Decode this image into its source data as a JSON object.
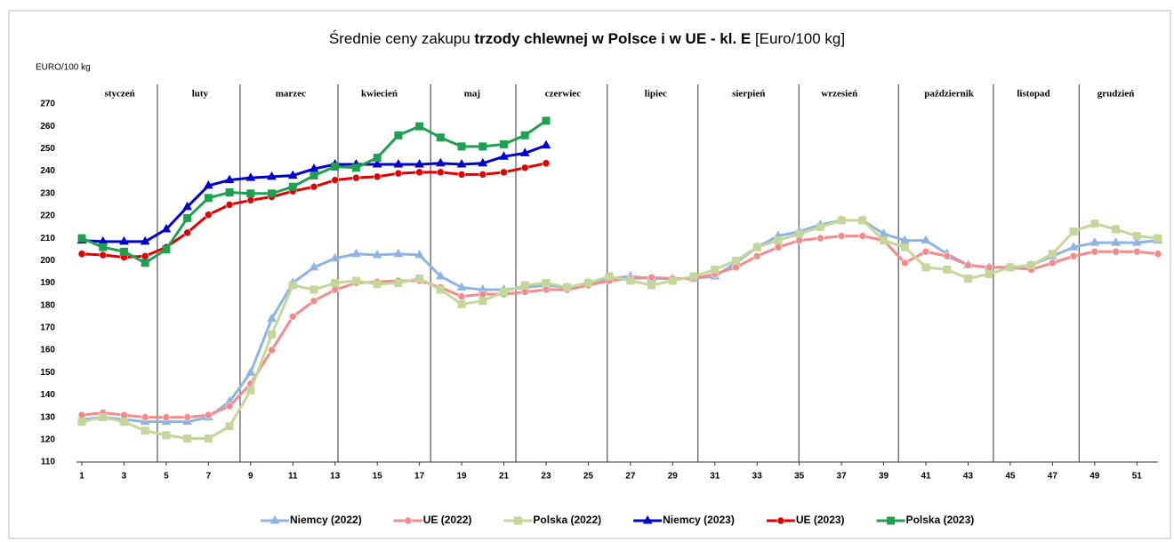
{
  "chart_data": {
    "type": "line",
    "title": [
      "Średnie ceny zakupu ",
      "trzody chlewnej w Polsce i w UE - kl. E",
      " [Euro/100 kg]"
    ],
    "y_label": "EURO/100 kg",
    "months": [
      "styczeń",
      "luty",
      "marzec",
      "kwiecień",
      "maj",
      "czerwiec",
      "lipiec",
      "sierpień",
      "wrzesień",
      "październik",
      "listopad",
      "grudzień"
    ],
    "x": [
      1,
      2,
      3,
      4,
      5,
      6,
      7,
      8,
      9,
      10,
      11,
      12,
      13,
      14,
      15,
      16,
      17,
      18,
      19,
      20,
      21,
      22,
      23,
      24,
      25,
      26,
      27,
      28,
      29,
      30,
      31,
      32,
      33,
      34,
      35,
      36,
      37,
      38,
      39,
      40,
      41,
      42,
      43,
      44,
      45,
      46,
      47,
      48,
      49,
      50,
      51,
      52
    ],
    "xlim": [
      1,
      52
    ],
    "xticks": [
      1,
      3,
      5,
      7,
      9,
      11,
      13,
      15,
      17,
      19,
      21,
      23,
      25,
      27,
      29,
      31,
      33,
      35,
      37,
      39,
      41,
      43,
      45,
      47,
      49,
      51
    ],
    "ylim": [
      110,
      270
    ],
    "yticks": [
      110,
      120,
      130,
      140,
      150,
      160,
      170,
      180,
      190,
      200,
      210,
      220,
      230,
      240,
      250,
      260,
      270
    ],
    "grid": false,
    "legend": "bottom",
    "series": [
      {
        "name": "Niemcy (2022)",
        "color": "#8eb4e3",
        "marker": "triangle",
        "values": [
          129,
          130,
          129,
          128,
          128,
          128,
          130,
          137,
          150,
          174,
          190,
          197,
          201,
          203,
          202.5,
          203,
          202.5,
          193,
          188,
          187,
          187,
          188,
          189,
          188,
          190,
          192,
          193,
          192,
          192,
          192,
          193,
          199,
          206,
          211,
          213,
          216,
          218,
          218,
          212,
          209,
          209,
          203,
          198,
          197,
          197,
          198,
          202,
          206,
          208,
          208,
          208,
          209
        ]
      },
      {
        "name": "UE (2022)",
        "color": "#f48a8a",
        "marker": "circle",
        "values": [
          131,
          132,
          131,
          130,
          130,
          130,
          131,
          135,
          145,
          160,
          175,
          182,
          187,
          190,
          190.5,
          191,
          191,
          188,
          184,
          185,
          185,
          186,
          187,
          187,
          189,
          191,
          192,
          192.5,
          192,
          192,
          194,
          197,
          202,
          206,
          209,
          210,
          211,
          211,
          209,
          199,
          204,
          202,
          198,
          197,
          197,
          196,
          199,
          202,
          204,
          204,
          204,
          203
        ]
      },
      {
        "name": "Polska (2022)",
        "color": "#c4d79b",
        "marker": "square",
        "values": [
          128,
          130,
          128,
          124,
          122,
          120.5,
          120.5,
          126,
          142,
          167,
          189,
          187,
          190,
          191,
          189.5,
          190,
          192,
          187,
          180.5,
          182,
          186,
          189,
          190,
          188,
          190,
          193,
          191,
          189,
          191,
          193,
          196,
          200,
          206,
          209,
          212,
          215,
          218,
          218,
          209,
          206,
          197,
          196,
          192,
          194,
          197,
          198,
          203,
          213,
          216.5,
          214,
          211,
          210
        ]
      },
      {
        "name": "Niemcy (2023)",
        "color": "#0000cc",
        "marker": "triangle",
        "values": [
          209,
          208.5,
          208.5,
          208.5,
          214,
          224,
          233.5,
          236,
          237,
          237.5,
          238,
          241,
          243,
          243,
          243,
          243,
          243,
          243.5,
          243,
          243.5,
          246.5,
          248,
          251.5,
          null,
          null,
          null,
          null,
          null,
          null,
          null,
          null,
          null,
          null,
          null,
          null,
          null,
          null,
          null,
          null,
          null,
          null,
          null,
          null,
          null,
          null,
          null,
          null,
          null,
          null,
          null,
          null,
          null
        ]
      },
      {
        "name": "UE (2023)",
        "color": "#e00000",
        "marker": "circle",
        "values": [
          203,
          202.5,
          201.5,
          202,
          206,
          212.5,
          220.5,
          225,
          227,
          228.5,
          231,
          233,
          236,
          237,
          237.5,
          239,
          239.5,
          239.5,
          238.5,
          238.5,
          239.5,
          241.5,
          243.5,
          null,
          null,
          null,
          null,
          null,
          null,
          null,
          null,
          null,
          null,
          null,
          null,
          null,
          null,
          null,
          null,
          null,
          null,
          null,
          null,
          null,
          null,
          null,
          null,
          null,
          null,
          null,
          null,
          null
        ]
      },
      {
        "name": "Polska (2023)",
        "color": "#1fa050",
        "marker": "square",
        "values": [
          210,
          206,
          204,
          199,
          205,
          219,
          228,
          230.5,
          230,
          230,
          233,
          238,
          242,
          241.5,
          246,
          256,
          260,
          255,
          251,
          251,
          252,
          256,
          262.5,
          null,
          null,
          null,
          null,
          null,
          null,
          null,
          null,
          null,
          null,
          null,
          null,
          null,
          null,
          null,
          null,
          null,
          null,
          null,
          null,
          null,
          null,
          null,
          null,
          null,
          null,
          null,
          null,
          null
        ]
      }
    ]
  }
}
